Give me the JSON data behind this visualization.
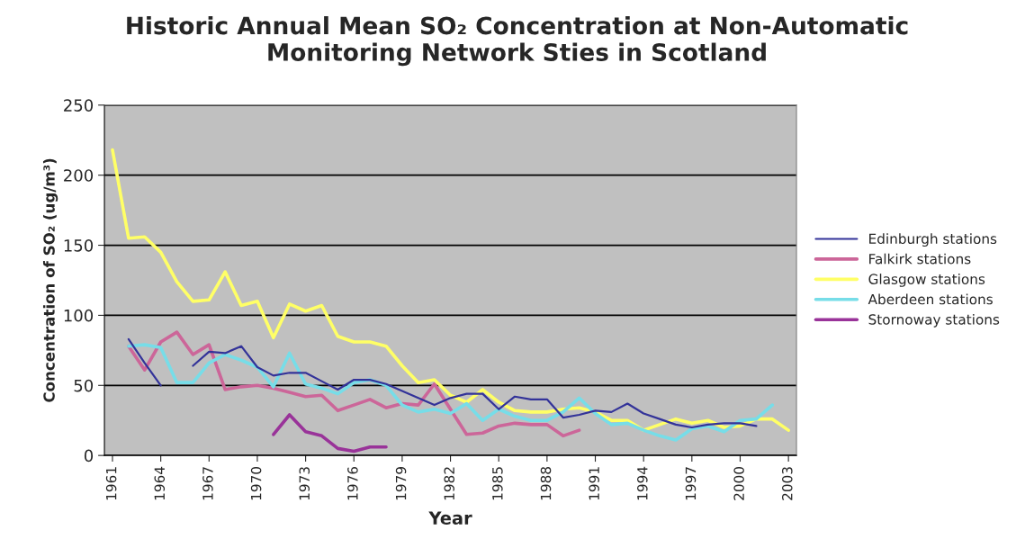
{
  "chart_data": {
    "type": "line",
    "title": "Historic Annual Mean SO₂ Concentration at Non-Automatic Monitoring Network Sties in Scotland",
    "xlabel": "Year",
    "ylabel": "Concentration of SO₂ (ug/m³)",
    "series": [
      {
        "name": "Edinburgh stations",
        "color": "#333399",
        "x": [
          1962,
          1963,
          1964,
          1965,
          1966,
          1967,
          1968,
          1969,
          1970,
          1971,
          1972,
          1973,
          1974,
          1975,
          1976,
          1977,
          1978,
          1979,
          1980,
          1981,
          1982,
          1983,
          1984,
          1985,
          1986,
          1987,
          1988,
          1989,
          1990,
          1991,
          1992,
          1993,
          1994,
          1995,
          1996,
          1997,
          1998,
          1999,
          2000,
          2001
        ],
        "values": [
          83,
          66,
          50,
          null,
          64,
          74,
          73,
          78,
          63,
          57,
          59,
          59,
          53,
          47,
          54,
          54,
          51,
          46,
          41,
          36,
          41,
          44,
          44,
          33,
          42,
          40,
          40,
          27,
          29,
          32,
          31,
          37,
          30,
          26,
          22,
          20,
          22,
          23,
          23,
          21
        ]
      },
      {
        "name": "Falkirk stations",
        "color": "#cc6699",
        "x": [
          1962,
          1963,
          1964,
          1965,
          1966,
          1967,
          1968,
          1969,
          1970,
          1971,
          1972,
          1973,
          1974,
          1975,
          1976,
          1977,
          1978,
          1979,
          1980,
          1981,
          1982,
          1983,
          1984,
          1985,
          1986,
          1987,
          1988,
          1989,
          1990
        ],
        "values": [
          78,
          61,
          81,
          88,
          72,
          79,
          47,
          49,
          50,
          48,
          45,
          42,
          43,
          32,
          36,
          40,
          34,
          37,
          36,
          51,
          33,
          15,
          16,
          21,
          23,
          22,
          22,
          14,
          18
        ]
      },
      {
        "name": "Glasgow stations",
        "color": "#ffff66",
        "x": [
          1961,
          1962,
          1963,
          1964,
          1965,
          1966,
          1967,
          1968,
          1969,
          1970,
          1971,
          1972,
          1973,
          1974,
          1975,
          1976,
          1977,
          1978,
          1979,
          1980,
          1981,
          1982,
          1983,
          1984,
          1985,
          1986,
          1987,
          1988,
          1989,
          1990,
          1991,
          1992,
          1993,
          1994,
          1995,
          1996,
          1997,
          1998,
          1999,
          2000,
          2001,
          2002,
          2003
        ],
        "values": [
          218,
          155,
          156,
          145,
          124,
          110,
          111,
          131,
          107,
          110,
          84,
          108,
          103,
          107,
          85,
          81,
          81,
          78,
          64,
          52,
          54,
          43,
          38,
          47,
          38,
          32,
          31,
          31,
          33,
          34,
          31,
          25,
          25,
          18,
          22,
          26,
          23,
          25,
          20,
          21,
          26,
          26,
          18
        ]
      },
      {
        "name": "Aberdeen stations",
        "color": "#77dde8",
        "x": [
          1962,
          1963,
          1964,
          1965,
          1966,
          1967,
          1968,
          1969,
          1970,
          1971,
          1972,
          1973,
          1974,
          1975,
          1976,
          1977,
          1978,
          1979,
          1980,
          1981,
          1982,
          1983,
          1984,
          1985,
          1986,
          1987,
          1988,
          1989,
          1990,
          1991,
          1992,
          1993,
          1994,
          1995,
          1996,
          1997,
          1998,
          1999,
          2000,
          2001,
          2002
        ],
        "values": [
          78,
          79,
          77,
          52,
          52,
          66,
          72,
          68,
          63,
          49,
          73,
          51,
          48,
          44,
          52,
          54,
          50,
          36,
          31,
          33,
          30,
          37,
          25,
          33,
          28,
          25,
          25,
          31,
          41,
          30,
          22,
          23,
          18,
          14,
          11,
          19,
          21,
          17,
          25,
          26,
          36
        ]
      },
      {
        "name": "Stornoway stations",
        "color": "#993399",
        "x": [
          1971,
          1972,
          1973,
          1974,
          1975,
          1976,
          1977,
          1978
        ],
        "values": [
          15,
          29,
          17,
          14,
          5,
          3,
          6,
          6
        ]
      }
    ],
    "xlim": [
      1960.5,
      2003.5
    ],
    "xticks": [
      1961,
      1964,
      1967,
      1970,
      1973,
      1976,
      1979,
      1982,
      1985,
      1988,
      1991,
      1994,
      1997,
      2000,
      2003
    ],
    "ylim": [
      0,
      250
    ],
    "yticks": [
      0,
      50,
      100,
      150,
      200,
      250
    ],
    "grid": "y",
    "legend": "right",
    "marker": "none",
    "line_style": "solid"
  }
}
